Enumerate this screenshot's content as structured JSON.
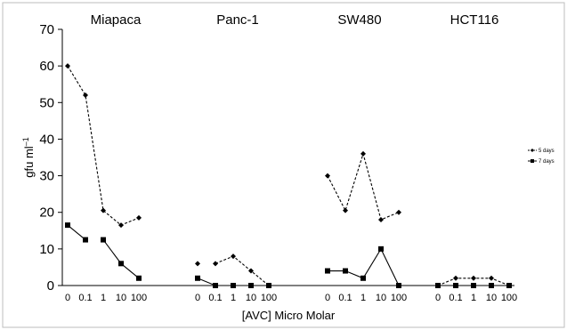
{
  "chart_data": {
    "type": "line",
    "ylabel_base": "gfu ml",
    "ylabel_sup": "–1",
    "xlabel": "[AVC] Micro Molar",
    "ylim": [
      0,
      70
    ],
    "yticks": [
      0,
      10,
      20,
      30,
      40,
      50,
      60,
      70
    ],
    "grid": false,
    "legend_position": "right",
    "legend": [
      {
        "label": "5 days",
        "marker": "diamond",
        "dash": "3,2"
      },
      {
        "label": "7 days",
        "marker": "square",
        "dash": ""
      }
    ],
    "colors": {
      "line": "#000000",
      "background": "#ffffff"
    },
    "panels": [
      {
        "title": "Miapaca",
        "x_labels": [
          "0",
          "0.1",
          "1",
          "10",
          "100"
        ],
        "series": [
          {
            "values": [
              60,
              52,
              20.5,
              16.5,
              18.5
            ],
            "segments": [
              [
                0,
                1,
                2,
                3,
                4
              ]
            ]
          },
          {
            "values": [
              16.5,
              12.5,
              12.5,
              6,
              2
            ],
            "segments": [
              [
                0,
                1
              ],
              [
                2,
                3,
                4
              ]
            ]
          }
        ]
      },
      {
        "title": "Panc-1",
        "x_labels": [
          "0",
          "0.1",
          "1",
          "10",
          "100"
        ],
        "series": [
          {
            "values": [
              6,
              6,
              8,
              4,
              0
            ],
            "segments": [
              [
                1,
                2,
                3,
                4
              ]
            ]
          },
          {
            "values": [
              2,
              0,
              0,
              0,
              0
            ],
            "segments": [
              [
                0,
                1,
                2,
                3,
                4
              ]
            ]
          }
        ]
      },
      {
        "title": "SW480",
        "x_labels": [
          "0",
          "0.1",
          "1",
          "10",
          "100"
        ],
        "series": [
          {
            "values": [
              30,
              20.5,
              36,
              18,
              20
            ],
            "segments": [
              [
                0,
                1,
                2,
                3,
                4
              ]
            ]
          },
          {
            "values": [
              4,
              4,
              2,
              10,
              0
            ],
            "segments": [
              [
                0,
                1,
                2,
                3,
                4
              ]
            ]
          }
        ]
      },
      {
        "title": "HCT116",
        "x_labels": [
          "0",
          "0.1",
          "1",
          "10",
          "100"
        ],
        "series": [
          {
            "values": [
              0,
              2,
              2,
              2,
              0
            ],
            "segments": [
              [
                0,
                1,
                2,
                3,
                4
              ]
            ]
          },
          {
            "values": [
              0,
              0,
              0,
              0,
              0
            ],
            "segments": [
              [
                0,
                1,
                2,
                3,
                4
              ]
            ]
          }
        ]
      }
    ]
  }
}
